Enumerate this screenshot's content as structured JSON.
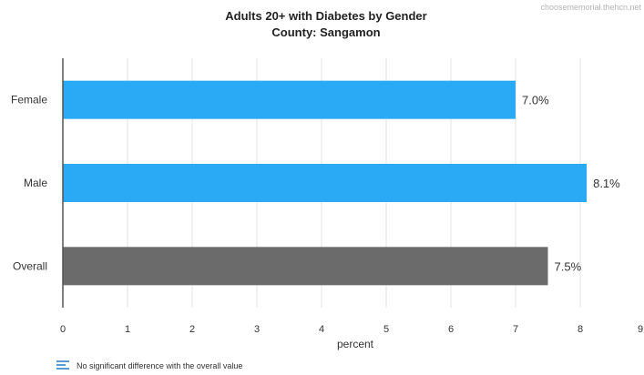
{
  "watermark": "choosememorial.thehcn.net",
  "legend": {
    "icon": "striped-legend-icon",
    "text": "No significant difference with the overall value"
  },
  "colors": {
    "highlight_bar": "#2aaaf4",
    "overall_bar": "#6b6b6b",
    "grid": "#e3e3e3",
    "axis": "#555555",
    "legend_icon": "#5b9bd5"
  },
  "chart_data": {
    "type": "bar",
    "orientation": "horizontal",
    "title": "Adults 20+ with Diabetes by Gender",
    "subtitle": "County: Sangamon",
    "xlabel": "percent",
    "ylabel": "",
    "xlim": [
      0,
      9
    ],
    "xticks": [
      "0",
      "1",
      "2",
      "3",
      "4",
      "5",
      "6",
      "7",
      "8",
      "9"
    ],
    "grid": true,
    "categories": [
      "Female",
      "Male",
      "Overall"
    ],
    "values": [
      7.0,
      8.1,
      7.5
    ],
    "data_labels": [
      "7.0%",
      "8.1%",
      "7.5%"
    ]
  }
}
